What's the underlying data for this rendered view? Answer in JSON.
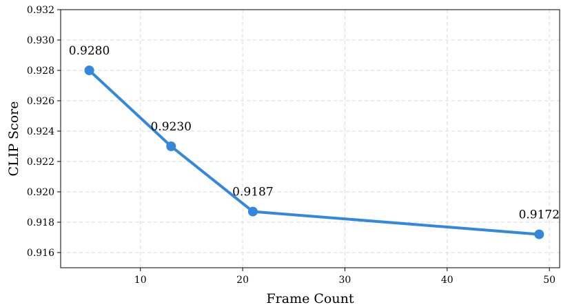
{
  "chart_data": {
    "type": "line",
    "title": "",
    "xlabel": "Frame Count",
    "ylabel": "CLIP Score",
    "x": [
      5,
      13,
      21,
      49
    ],
    "series": [
      {
        "values": [
          0.928,
          0.923,
          0.9187,
          0.9172
        ],
        "labels": [
          "0.9280",
          "0.9230",
          "0.9187",
          "0.9172"
        ],
        "color": "#3388dd"
      }
    ],
    "xlim": [
      2.2,
      51
    ],
    "ylim": [
      0.915,
      0.932
    ],
    "xticks": [
      10,
      20,
      30,
      40,
      50
    ],
    "xtick_labels": [
      "10",
      "20",
      "30",
      "40",
      "50"
    ],
    "yticks": [
      0.916,
      0.918,
      0.92,
      0.922,
      0.924,
      0.926,
      0.928,
      0.93,
      0.932
    ],
    "ytick_labels": [
      "0.916",
      "0.918",
      "0.920",
      "0.922",
      "0.924",
      "0.926",
      "0.928",
      "0.930",
      "0.932"
    ],
    "grid": true,
    "legend": "none"
  }
}
